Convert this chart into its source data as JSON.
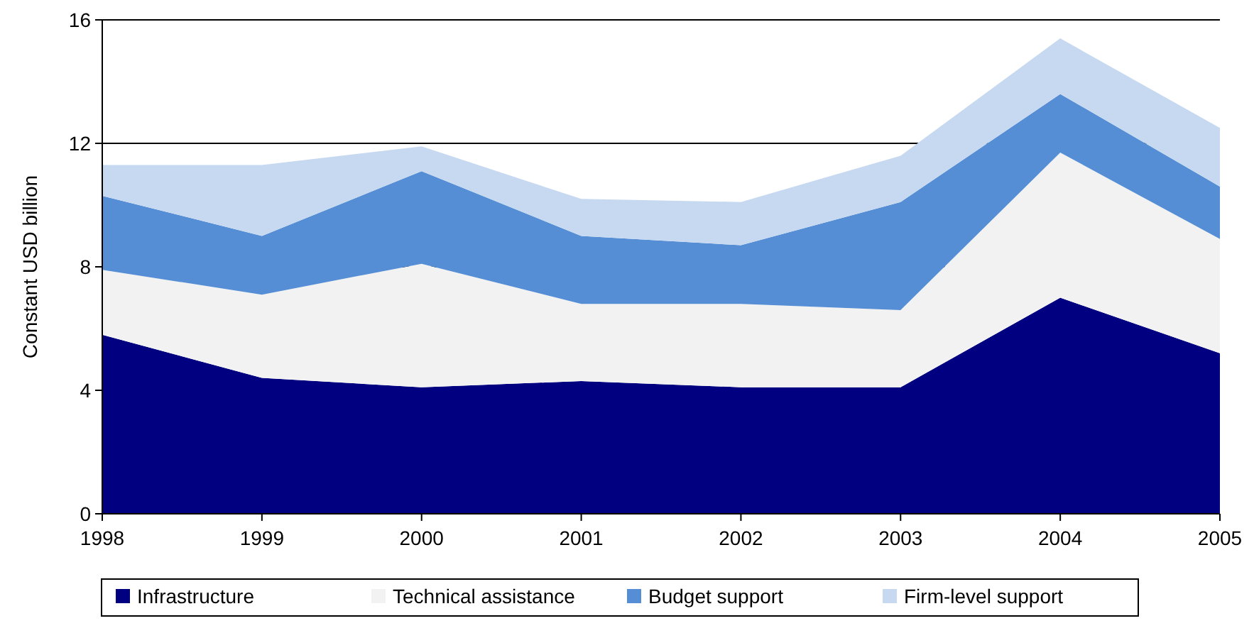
{
  "chart_data": {
    "type": "area",
    "stacked": true,
    "ylabel": "Constant USD billion",
    "x": [
      1998,
      1999,
      2000,
      2001,
      2002,
      2003,
      2004,
      2005
    ],
    "xlim": [
      1998,
      2005
    ],
    "xticks": [
      1998,
      1999,
      2000,
      2001,
      2002,
      2003,
      2004,
      2005
    ],
    "ylim": [
      0,
      16
    ],
    "yticks": [
      0,
      4,
      8,
      12,
      16
    ],
    "grid": "y",
    "legend": "bottom",
    "series": [
      {
        "name": "Infrastructure",
        "color": "#000080",
        "values": [
          5.8,
          4.4,
          4.1,
          4.3,
          4.1,
          4.1,
          7.0,
          5.2
        ]
      },
      {
        "name": "Technical assistance",
        "color": "#f2f2f2",
        "values": [
          2.1,
          2.7,
          4.0,
          2.5,
          2.7,
          2.5,
          4.7,
          3.7
        ]
      },
      {
        "name": "Budget support",
        "color": "#558ed5",
        "values": [
          2.4,
          1.9,
          3.0,
          2.2,
          1.9,
          3.5,
          1.9,
          1.7
        ]
      },
      {
        "name": "Firm-level support",
        "color": "#c6d9f1",
        "values": [
          1.0,
          2.3,
          0.8,
          1.2,
          1.4,
          1.5,
          1.8,
          1.9
        ]
      }
    ]
  }
}
